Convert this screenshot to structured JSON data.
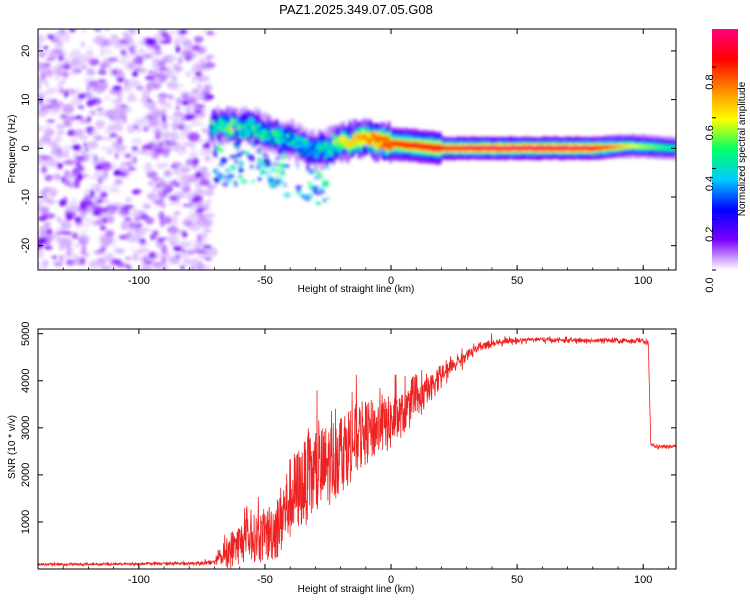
{
  "chart_data": [
    {
      "type": "heatmap",
      "title": "PAZ1.2025.349.07.05.G08",
      "xlabel": "Height of straight line (km)",
      "ylabel": "Frequency (Hz)",
      "xlim": [
        -140,
        113
      ],
      "ylim": [
        -25,
        24.5
      ],
      "xticks": [
        -100,
        -50,
        0,
        50,
        100
      ],
      "yticks": [
        -20,
        -10,
        0,
        10,
        20
      ],
      "colorbar": {
        "label": "Normalized spectral amplitude",
        "range": [
          0,
          0.95
        ],
        "ticks": [
          0.0,
          0.2,
          0.4,
          0.6,
          0.8
        ],
        "colors": [
          "#ffffff",
          "#7a00ff",
          "#0000ff",
          "#00ccff",
          "#00ff66",
          "#ffff00",
          "#ff8800",
          "#ff0000",
          "#ff0080"
        ]
      },
      "noise_region_km": [
        -140,
        -71
      ],
      "ridge": [
        {
          "x": -71,
          "f": 4.5,
          "a": 0.45
        },
        {
          "x": -65,
          "f": 4.5,
          "a": 0.55
        },
        {
          "x": -60,
          "f": 4.0,
          "a": 0.5
        },
        {
          "x": -55,
          "f": 4.5,
          "a": 0.45
        },
        {
          "x": -50,
          "f": 3.0,
          "a": 0.4
        },
        {
          "x": -45,
          "f": 2.5,
          "a": 0.45
        },
        {
          "x": -40,
          "f": 2.0,
          "a": 0.4
        },
        {
          "x": -35,
          "f": 0.5,
          "a": 0.4
        },
        {
          "x": -30,
          "f": -0.5,
          "a": 0.35
        },
        {
          "x": -25,
          "f": 0.0,
          "a": 0.5
        },
        {
          "x": -20,
          "f": 1.0,
          "a": 0.6
        },
        {
          "x": -15,
          "f": 1.5,
          "a": 0.65
        },
        {
          "x": -10,
          "f": 2.0,
          "a": 0.7
        },
        {
          "x": -5,
          "f": 1.5,
          "a": 0.75
        },
        {
          "x": 0,
          "f": 1.0,
          "a": 0.8
        },
        {
          "x": 10,
          "f": 0.5,
          "a": 0.85
        },
        {
          "x": 20,
          "f": 0.0,
          "a": 0.88
        },
        {
          "x": 40,
          "f": 0.0,
          "a": 0.92
        },
        {
          "x": 60,
          "f": 0.0,
          "a": 0.92
        },
        {
          "x": 80,
          "f": 0.0,
          "a": 0.9
        },
        {
          "x": 95,
          "f": 0.5,
          "a": 0.6
        },
        {
          "x": 113,
          "f": 0.0,
          "a": 0.45
        }
      ]
    },
    {
      "type": "line",
      "title": "",
      "xlabel": "Height of straight line (km)",
      "ylabel": "SNR (10 * v/v)",
      "xlim": [
        -140,
        113
      ],
      "ylim": [
        0,
        5100
      ],
      "xticks": [
        -100,
        -50,
        0,
        50,
        100
      ],
      "yticks": [
        1000,
        2000,
        3000,
        4000,
        5000
      ],
      "color": "#ee2222",
      "series": [
        {
          "name": "SNR",
          "x": [
            -140,
            -120,
            -100,
            -80,
            -70,
            -65,
            -60,
            -55,
            -50,
            -45,
            -40,
            -35,
            -30,
            -25,
            -20,
            -15,
            -10,
            -5,
            0,
            5,
            10,
            15,
            20,
            25,
            30,
            35,
            40,
            45,
            50,
            55,
            60,
            70,
            80,
            90,
            100,
            102,
            103,
            105,
            113
          ],
          "y": [
            100,
            100,
            110,
            120,
            150,
            350,
            550,
            650,
            700,
            900,
            1500,
            1800,
            2000,
            2200,
            2500,
            2700,
            2900,
            3000,
            3100,
            3300,
            3500,
            3800,
            4100,
            4350,
            4550,
            4700,
            4800,
            4850,
            4850,
            4880,
            4870,
            4860,
            4850,
            4850,
            4850,
            4800,
            2650,
            2600,
            2600
          ],
          "noise": [
            30,
            30,
            30,
            40,
            60,
            400,
            450,
            500,
            600,
            700,
            900,
            900,
            1000,
            900,
            900,
            800,
            700,
            600,
            600,
            450,
            400,
            300,
            250,
            200,
            150,
            120,
            100,
            80,
            70,
            60,
            60,
            60,
            60,
            60,
            60,
            60,
            40,
            40,
            40
          ]
        }
      ]
    }
  ]
}
